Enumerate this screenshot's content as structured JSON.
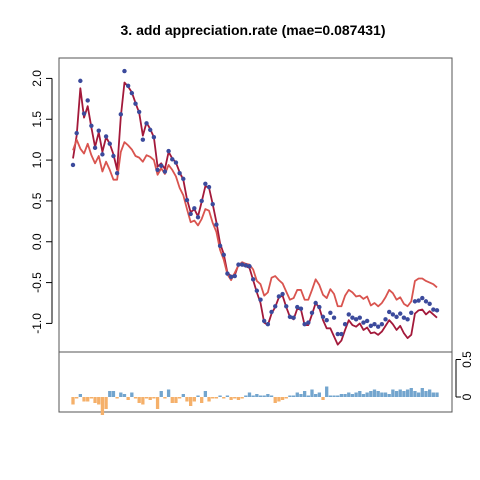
{
  "chart_data": [
    {
      "type": "line",
      "title": "3. add appreciation.rate (mae=0.087431)",
      "xlabel": "",
      "ylabel": "",
      "ylim": [
        -1.35,
        2.25
      ],
      "yticks": [
        -1.0,
        -0.5,
        0.0,
        0.5,
        1.0,
        1.5,
        2.0
      ],
      "ytick_labels": [
        "-1.0",
        "-0.5",
        "0.0",
        "0.5",
        "1.0",
        "1.5",
        "2.0"
      ],
      "grid": false,
      "x_count": 100,
      "series": [
        {
          "name": "",
          "kind": "points",
          "color": "#3b4a9c",
          "values": [
            0.94,
            1.33,
            1.97,
            1.57,
            1.73,
            1.42,
            1.15,
            1.36,
            1.07,
            1.29,
            1.2,
            1.05,
            0.84,
            1.56,
            2.09,
            1.91,
            1.82,
            1.69,
            1.59,
            1.25,
            1.45,
            1.37,
            1.28,
            0.88,
            0.93,
            0.86,
            1.11,
            1.01,
            0.97,
            0.84,
            0.77,
            0.51,
            0.34,
            0.41,
            0.3,
            0.5,
            0.71,
            0.67,
            0.46,
            0.21,
            -0.05,
            -0.16,
            -0.39,
            -0.43,
            -0.42,
            -0.28,
            -0.28,
            -0.29,
            -0.3,
            -0.46,
            -0.6,
            -0.71,
            -0.97,
            -1.01,
            -0.86,
            -0.79,
            -0.67,
            -0.64,
            -0.79,
            -0.92,
            -0.93,
            -0.8,
            -0.82,
            -1.01,
            -0.99,
            -0.87,
            -0.75,
            -0.8,
            -0.92,
            -0.96,
            -0.87,
            -0.93,
            -1.13,
            -1.13,
            -1.01,
            -0.89,
            -0.93,
            -0.95,
            -0.93,
            -0.99,
            -0.97,
            -1.03,
            -1.01,
            -1.04,
            -1.01,
            -0.95,
            -0.86,
            -0.89,
            -0.92,
            -0.88,
            -0.93,
            -0.95,
            -0.87,
            -0.73,
            -0.72,
            -0.69,
            -0.73,
            -0.76,
            -0.83,
            -0.84
          ]
        },
        {
          "name": "",
          "kind": "line",
          "color": "#a3193a",
          "values": [
            1.02,
            1.3,
            1.88,
            1.52,
            1.66,
            1.4,
            1.16,
            1.34,
            1.1,
            1.28,
            1.2,
            1.07,
            0.88,
            1.53,
            1.95,
            1.9,
            1.83,
            1.7,
            1.58,
            1.3,
            1.46,
            1.38,
            1.28,
            0.92,
            0.96,
            0.89,
            1.1,
            1.02,
            0.97,
            0.85,
            0.76,
            0.52,
            0.36,
            0.4,
            0.31,
            0.49,
            0.68,
            0.66,
            0.46,
            0.24,
            -0.02,
            -0.15,
            -0.38,
            -0.42,
            -0.41,
            -0.28,
            -0.29,
            -0.3,
            -0.32,
            -0.47,
            -0.62,
            -0.75,
            -0.99,
            -1.02,
            -0.88,
            -0.8,
            -0.68,
            -0.66,
            -0.8,
            -0.92,
            -0.95,
            -0.82,
            -0.83,
            -1.02,
            -1.02,
            -0.89,
            -0.75,
            -0.81,
            -0.96,
            -1.06,
            -1.06,
            -1.16,
            -1.26,
            -1.21,
            -1.08,
            -0.96,
            -1.02,
            -1.04,
            -1.0,
            -1.08,
            -1.05,
            -1.12,
            -1.11,
            -1.14,
            -1.1,
            -1.03,
            -0.96,
            -1.01,
            -1.08,
            -1.03,
            -1.12,
            -1.18,
            -1.14,
            -0.88,
            -0.84,
            -0.83,
            -0.89,
            -0.85,
            -0.89,
            -0.93
          ]
        },
        {
          "name": "",
          "kind": "line",
          "color": "#d9544f",
          "values": [
            1.12,
            1.25,
            1.14,
            1.08,
            1.2,
            1.06,
            0.96,
            1.05,
            0.86,
            0.98,
            0.88,
            0.76,
            0.76,
            1.1,
            1.22,
            1.18,
            1.13,
            1.05,
            1.03,
            0.98,
            1.06,
            1.04,
            1.0,
            0.82,
            0.9,
            0.83,
            0.94,
            0.88,
            0.8,
            0.66,
            0.57,
            0.4,
            0.24,
            0.26,
            0.2,
            0.28,
            0.4,
            0.38,
            0.23,
            0.12,
            -0.1,
            -0.22,
            -0.4,
            -0.47,
            -0.38,
            -0.29,
            -0.25,
            -0.27,
            -0.28,
            -0.34,
            -0.48,
            -0.52,
            -0.66,
            -0.62,
            -0.44,
            -0.42,
            -0.47,
            -0.51,
            -0.61,
            -0.71,
            -0.69,
            -0.59,
            -0.59,
            -0.71,
            -0.71,
            -0.59,
            -0.46,
            -0.53,
            -0.65,
            -0.69,
            -0.58,
            -0.64,
            -0.79,
            -0.79,
            -0.66,
            -0.59,
            -0.62,
            -0.67,
            -0.66,
            -0.7,
            -0.67,
            -0.78,
            -0.75,
            -0.79,
            -0.75,
            -0.68,
            -0.59,
            -0.63,
            -0.71,
            -0.68,
            -0.76,
            -0.79,
            -0.73,
            -0.48,
            -0.45,
            -0.45,
            -0.48,
            -0.5,
            -0.52,
            -0.56
          ]
        }
      ]
    },
    {
      "type": "bar",
      "title": "",
      "ylim": [
        -0.2,
        0.6
      ],
      "yticks": [
        0.0,
        0.5
      ],
      "ytick_labels": [
        "0",
        "0.5"
      ],
      "grid": false,
      "colors": {
        "positive": "#73a5ce",
        "negative": "#f5b06a"
      },
      "values": [
        -0.1,
        -0.02,
        0.04,
        -0.06,
        -0.06,
        -0.02,
        -0.08,
        -0.1,
        -0.24,
        -0.16,
        0.08,
        0.08,
        -0.02,
        0.06,
        0.04,
        -0.04,
        0.06,
        -0.02,
        -0.08,
        -0.1,
        -0.02,
        -0.04,
        -0.02,
        -0.16,
        0.08,
        -0.02,
        0.1,
        -0.08,
        -0.08,
        -0.02,
        0.04,
        -0.06,
        -0.12,
        -0.06,
        0.02,
        -0.08,
        0.08,
        -0.06,
        -0.02,
        -0.02,
        0.02,
        -0.02,
        0.02,
        -0.04,
        -0.02,
        -0.04,
        -0.02,
        0.02,
        0.06,
        0.02,
        0.04,
        0.02,
        0.02,
        0.04,
        0.02,
        -0.08,
        -0.06,
        -0.04,
        -0.02,
        0.02,
        0.02,
        0.06,
        0.04,
        0.08,
        0.02,
        0.1,
        0.04,
        0.06,
        -0.04,
        0.14,
        0.02,
        0.02,
        0.02,
        0.04,
        0.04,
        0.06,
        0.04,
        0.06,
        0.08,
        0.04,
        0.06,
        0.08,
        0.1,
        0.08,
        0.06,
        0.06,
        0.04,
        0.1,
        0.08,
        0.1,
        0.08,
        0.1,
        0.12,
        0.08,
        0.06,
        0.12,
        0.08,
        0.1,
        0.06,
        0.06
      ]
    }
  ]
}
